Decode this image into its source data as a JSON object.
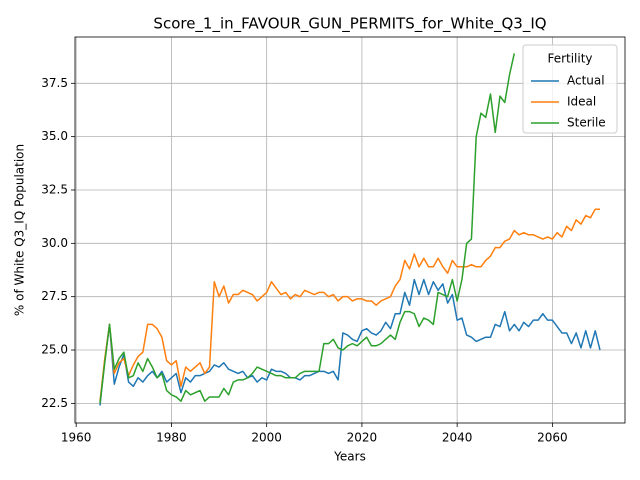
{
  "chart_data": {
    "type": "line",
    "title": "Score_1_in_FAVOUR_GUN_PERMITS_for_White_Q3_IQ",
    "x_label": "Years",
    "y_label": "% of White Q3_IQ Population",
    "legend_title": "Fertility",
    "legend": "upper right",
    "grid": true,
    "x": [
      1965,
      1966,
      1967,
      1968,
      1969,
      1970,
      1971,
      1972,
      1973,
      1974,
      1975,
      1976,
      1977,
      1978,
      1979,
      1980,
      1981,
      1982,
      1983,
      1984,
      1985,
      1986,
      1987,
      1988,
      1989,
      1990,
      1991,
      1992,
      1993,
      1994,
      1995,
      1996,
      1997,
      1998,
      1999,
      2000,
      2001,
      2002,
      2003,
      2004,
      2005,
      2006,
      2007,
      2008,
      2009,
      2010,
      2011,
      2012,
      2013,
      2014,
      2015,
      2016,
      2017,
      2018,
      2019,
      2020,
      2021,
      2022,
      2023,
      2024,
      2025,
      2026,
      2027,
      2028,
      2029,
      2030,
      2031,
      2032,
      2033,
      2034,
      2035,
      2036,
      2037,
      2038,
      2039,
      2040,
      2041,
      2042,
      2043,
      2044,
      2045,
      2046,
      2047,
      2048,
      2049,
      2050,
      2051,
      2052,
      2053,
      2054,
      2055,
      2056,
      2057,
      2058,
      2059,
      2060,
      2061,
      2062,
      2063,
      2064,
      2065,
      2066,
      2067,
      2068,
      2069,
      2070
    ],
    "series": [
      {
        "name": "Actual",
        "color": "#1f77b4",
        "values": [
          22.4,
          24.5,
          26.2,
          23.4,
          24.2,
          24.8,
          23.5,
          23.3,
          23.7,
          23.5,
          23.8,
          24.0,
          23.7,
          24.0,
          23.5,
          23.7,
          23.9,
          23.0,
          23.7,
          23.5,
          23.8,
          23.8,
          23.9,
          24.0,
          24.3,
          24.2,
          24.4,
          24.1,
          24.0,
          23.9,
          24.0,
          23.7,
          23.8,
          23.5,
          23.7,
          23.6,
          24.1,
          24.0,
          24.0,
          23.9,
          23.7,
          23.7,
          23.6,
          23.8,
          23.8,
          23.9,
          24.0,
          24.0,
          23.9,
          24.0,
          23.6,
          25.8,
          25.7,
          25.5,
          25.4,
          25.9,
          26.0,
          25.8,
          25.7,
          25.9,
          26.3,
          26.0,
          26.7,
          26.7,
          27.7,
          27.1,
          28.3,
          27.6,
          28.3,
          27.6,
          28.2,
          27.8,
          28.1,
          27.2,
          27.6,
          26.4,
          26.5,
          25.7,
          25.6,
          25.4,
          25.5,
          25.6,
          25.6,
          26.2,
          26.1,
          26.8,
          25.9,
          26.2,
          25.9,
          26.3,
          26.1,
          26.4,
          26.4,
          26.7,
          26.4,
          26.4,
          26.1,
          25.8,
          25.8,
          25.3,
          25.8,
          25.1,
          25.9,
          25.1,
          25.9,
          25.0
        ]
      },
      {
        "name": "Ideal",
        "color": "#ff7f0e",
        "values": [
          22.6,
          24.6,
          26.2,
          23.9,
          24.4,
          24.6,
          23.8,
          24.3,
          24.7,
          24.9,
          26.2,
          26.2,
          26.0,
          25.6,
          24.5,
          24.3,
          24.5,
          23.3,
          24.2,
          24.0,
          24.2,
          24.4,
          23.9,
          24.2,
          28.2,
          27.5,
          28.0,
          27.2,
          27.6,
          27.6,
          27.8,
          27.7,
          27.6,
          27.3,
          27.5,
          27.7,
          28.2,
          27.9,
          27.6,
          27.7,
          27.4,
          27.6,
          27.5,
          27.8,
          27.7,
          27.6,
          27.7,
          27.7,
          27.5,
          27.6,
          27.3,
          27.5,
          27.5,
          27.3,
          27.4,
          27.4,
          27.3,
          27.3,
          27.1,
          27.3,
          27.4,
          27.5,
          28.0,
          28.3,
          29.2,
          28.8,
          29.5,
          28.9,
          29.3,
          28.9,
          28.9,
          29.3,
          28.9,
          28.6,
          29.2,
          28.9,
          28.9,
          28.9,
          29.0,
          28.9,
          28.9,
          29.2,
          29.4,
          29.8,
          29.8,
          30.1,
          30.2,
          30.6,
          30.4,
          30.5,
          30.4,
          30.4,
          30.3,
          30.2,
          30.3,
          30.2,
          30.5,
          30.3,
          30.8,
          30.6,
          31.1,
          30.9,
          31.3,
          31.2,
          31.6,
          31.6
        ]
      },
      {
        "name": "Sterile",
        "color": "#2ca02c",
        "values": [
          22.5,
          24.4,
          26.2,
          24.1,
          24.6,
          24.9,
          23.7,
          23.8,
          24.4,
          24.0,
          24.6,
          24.2,
          23.7,
          23.9,
          23.1,
          22.9,
          22.8,
          22.6,
          23.1,
          22.9,
          23.0,
          23.1,
          22.6,
          22.8,
          22.8,
          22.8,
          23.2,
          22.9,
          23.5,
          23.6,
          23.6,
          23.7,
          23.9,
          24.2,
          24.1,
          24.0,
          23.9,
          23.8,
          23.8,
          23.7,
          23.7,
          23.7,
          23.9,
          24.0,
          24.0,
          24.0,
          24.0,
          25.3,
          25.3,
          25.5,
          25.1,
          25.0,
          25.2,
          25.3,
          25.2,
          25.4,
          25.6,
          25.2,
          25.2,
          25.3,
          25.5,
          25.7,
          25.5,
          26.3,
          26.8,
          26.8,
          26.7,
          26.1,
          26.5,
          26.4,
          26.2,
          27.7,
          27.6,
          27.5,
          28.3,
          27.3,
          28.3,
          30.0,
          30.2,
          35.0,
          36.1,
          35.9,
          37.0,
          35.2,
          36.9,
          36.6,
          37.9,
          38.9,
          null,
          null,
          null,
          null,
          null,
          null,
          null,
          null,
          null,
          null,
          null,
          null,
          null,
          null,
          null,
          null,
          null,
          null
        ]
      }
    ],
    "xlim": [
      1959.75,
      2075.25
    ],
    "xticks": [
      1960,
      1980,
      2000,
      2020,
      2040,
      2060
    ],
    "ylim": [
      21.58,
      39.67
    ],
    "yticks": [
      22.5,
      {
        "value": 25,
        "label": "25.0"
      },
      27.5,
      {
        "value": 30,
        "label": "30.0"
      },
      32.5,
      {
        "value": 35,
        "label": "35.0"
      },
      37.5
    ]
  }
}
